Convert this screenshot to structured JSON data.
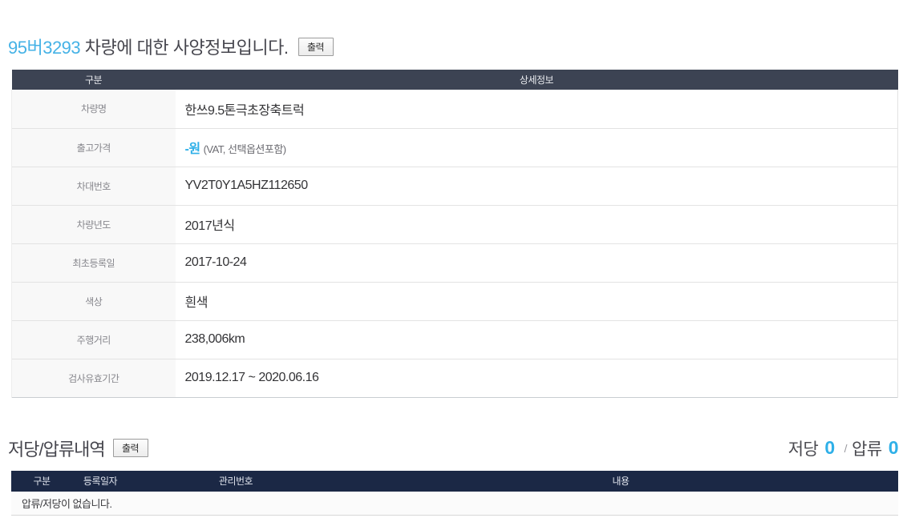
{
  "accent_color": "#2fb0e8",
  "header": {
    "plate": "95버3293",
    "title_rest": " 차량에 대한 사양정보입니다.",
    "print_label": "출력"
  },
  "spec_table": {
    "col_headers": [
      "구분",
      "상세정보"
    ],
    "rows": [
      {
        "label": "차량명",
        "value": "한쓰9.5톤극초장축트럭"
      },
      {
        "label": "출고가격",
        "value": "-원",
        "value_suffix": "(VAT, 선택옵션포함)"
      },
      {
        "label": "차대번호",
        "value": "YV2T0Y1A5HZ112650"
      },
      {
        "label": "차량년도",
        "value": "2017년식"
      },
      {
        "label": "최초등록일",
        "value": "2017-10-24"
      },
      {
        "label": "색상",
        "value": "흰색"
      },
      {
        "label": "주행거리",
        "value": "238,006km"
      },
      {
        "label": "검사유효기간",
        "value": "2019.12.17 ~ 2020.06.16"
      }
    ]
  },
  "lien_section": {
    "title": "저당/압류내역",
    "print_label": "출력",
    "summary": {
      "mortgage_label": "저당",
      "mortgage_count": "0",
      "separator": "/",
      "seizure_label": "압류",
      "seizure_count": "0"
    },
    "table": {
      "col_headers": [
        "구분",
        "등록일자",
        "관리번호",
        "내용"
      ],
      "empty_message": "압류/저당이 없습니다."
    }
  }
}
